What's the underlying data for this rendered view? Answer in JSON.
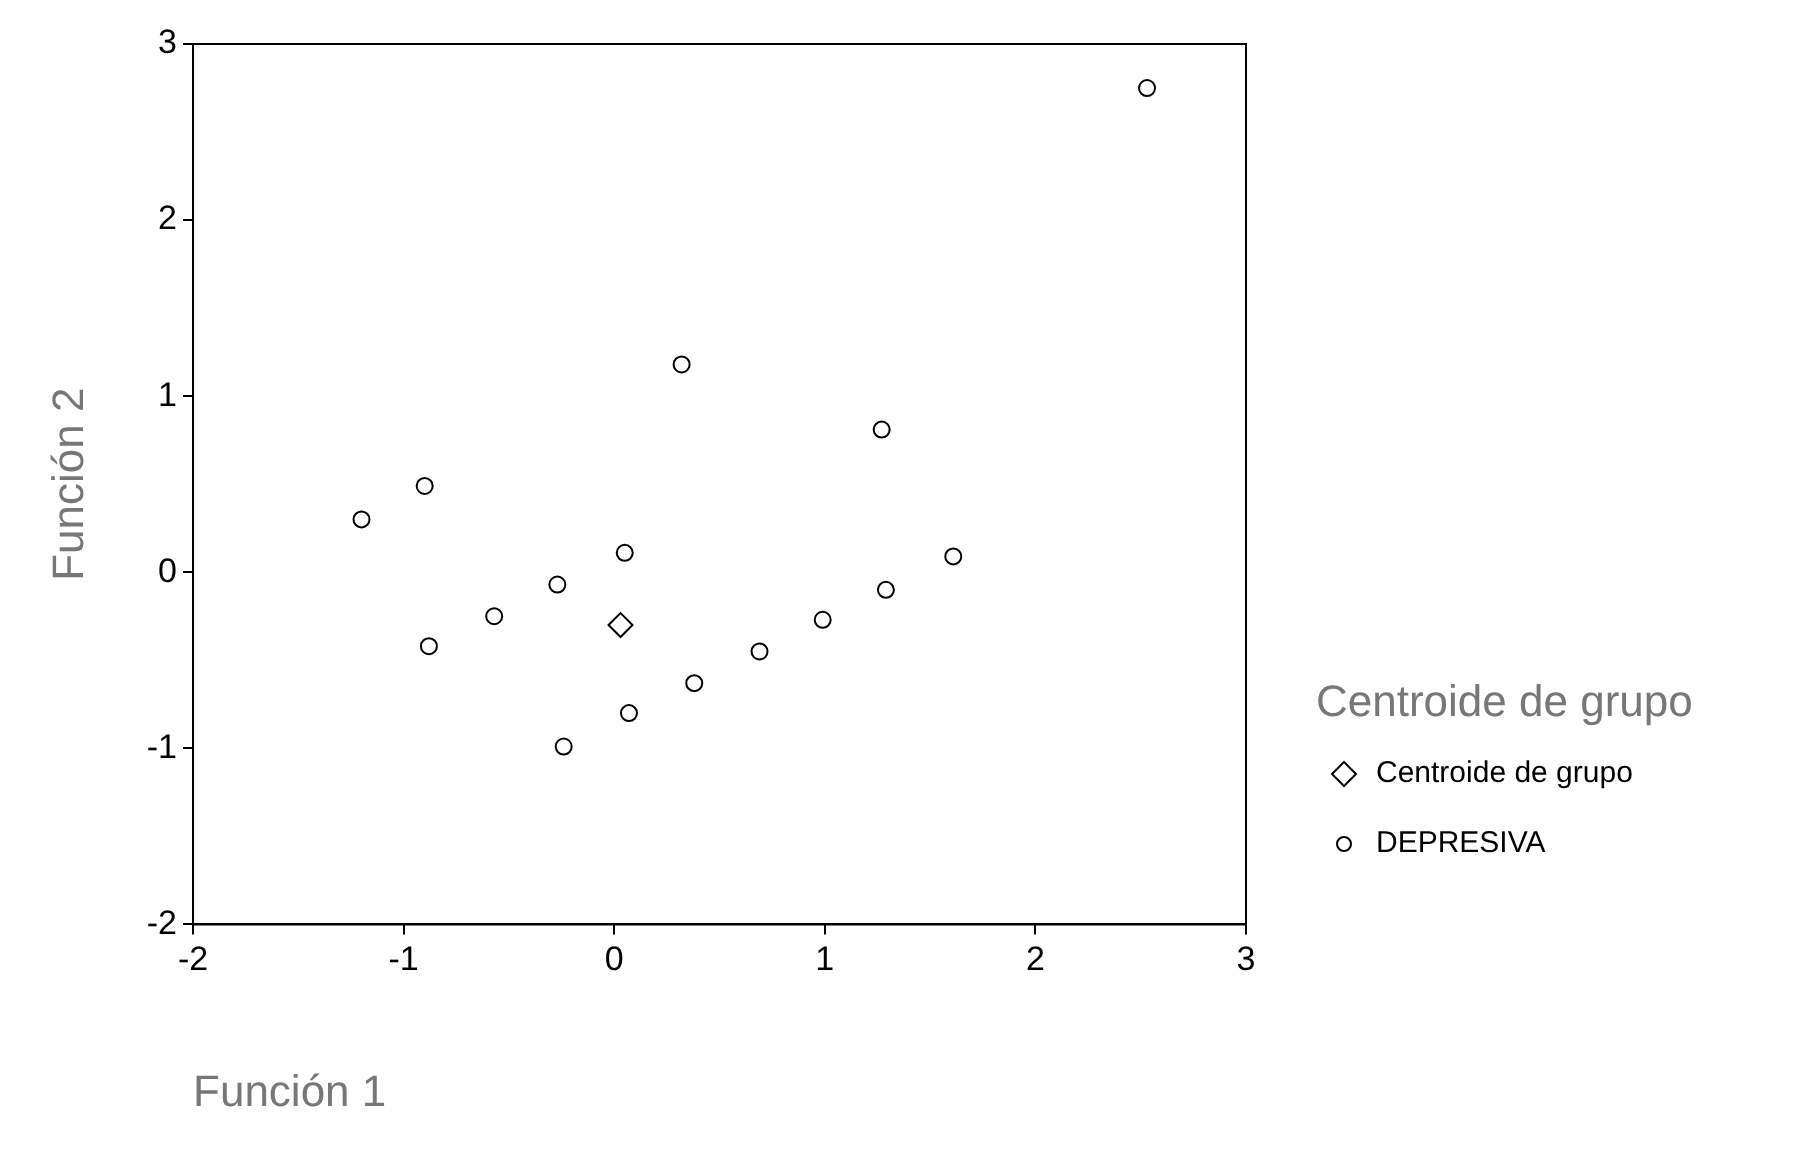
{
  "chart_data": {
    "type": "scatter",
    "xlabel": "Función 1",
    "ylabel": "Función 2",
    "legend_title": "Centroide de grupo",
    "legend": "right",
    "xlim": [
      -2,
      3
    ],
    "xticks": [
      -2,
      -1,
      0,
      1,
      2,
      3
    ],
    "ylim": [
      -2,
      3
    ],
    "yticks": [
      -2,
      -1,
      0,
      1,
      2,
      3
    ],
    "series": [
      {
        "name": "Centroide de grupo",
        "color": "#000000",
        "marker": "diamond",
        "x": [
          0.03
        ],
        "values": [
          -0.3
        ]
      },
      {
        "name": "DEPRESIVA",
        "color": "#000000",
        "marker": "circle",
        "x": [
          -1.2,
          -0.9,
          0.32,
          1.27,
          0.05,
          -0.27,
          -0.57,
          -0.88,
          0.99,
          1.29,
          0.69,
          0.38,
          0.07,
          -0.24,
          1.61,
          2.53
        ],
        "values": [
          0.3,
          0.49,
          1.18,
          0.81,
          0.11,
          -0.07,
          -0.25,
          -0.42,
          -0.27,
          -0.1,
          -0.45,
          -0.63,
          -0.8,
          -0.99,
          0.09,
          2.75
        ]
      }
    ]
  }
}
